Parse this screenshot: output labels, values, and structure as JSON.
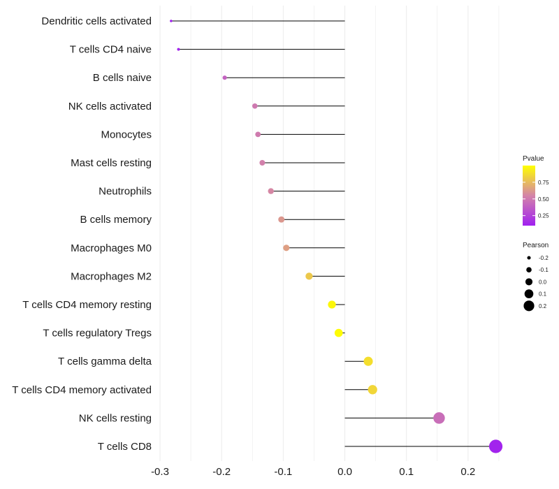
{
  "chart_data": {
    "type": "lollipop",
    "categories": [
      "Dendritic cells activated",
      "T cells CD4 naive",
      "B cells naive",
      "NK cells activated",
      "Monocytes",
      "Mast cells resting",
      "Neutrophils",
      "B cells memory",
      "Macrophages M0",
      "Macrophages M2",
      "T cells CD4 memory resting",
      "T cells regulatory  Tregs",
      "T cells gamma delta",
      "T cells CD4 memory activated",
      "NK cells resting",
      "T cells CD8"
    ],
    "pearson": [
      -0.282,
      -0.27,
      -0.195,
      -0.146,
      -0.141,
      -0.134,
      -0.12,
      -0.103,
      -0.095,
      -0.058,
      -0.021,
      -0.01,
      0.038,
      0.045,
      0.153,
      0.245
    ],
    "pvalue": [
      0.1,
      0.12,
      0.4,
      0.5,
      0.51,
      0.53,
      0.56,
      0.62,
      0.65,
      0.8,
      0.97,
      0.99,
      0.88,
      0.85,
      0.45,
      0.12
    ],
    "xlim": [
      -0.3,
      0.25
    ],
    "xticks": [
      "-0.3",
      "-0.2",
      "-0.1",
      "0.0",
      "0.1",
      "0.2"
    ],
    "xtick_values": [
      -0.3,
      -0.2,
      -0.1,
      0.0,
      0.1,
      0.2
    ],
    "grid": true,
    "legend": {
      "color": {
        "title": "Pvalue",
        "labels": [
          "0.75",
          "0.50",
          "0.25"
        ],
        "values": [
          0.75,
          0.5,
          0.25
        ],
        "low_color": "#a020f0",
        "mid_color": "#d484a8",
        "high_color": "#ffff00",
        "range": [
          0.1,
          1.0
        ]
      },
      "size": {
        "title": "Pearson",
        "labels": [
          "-0.2",
          "-0.1",
          "0.0",
          "0.1",
          "0.2"
        ],
        "values": [
          -0.2,
          -0.1,
          0.0,
          0.1,
          0.2
        ]
      },
      "position": "right"
    },
    "segment_color": "#000000",
    "grid_color": "#ebebeb"
  }
}
